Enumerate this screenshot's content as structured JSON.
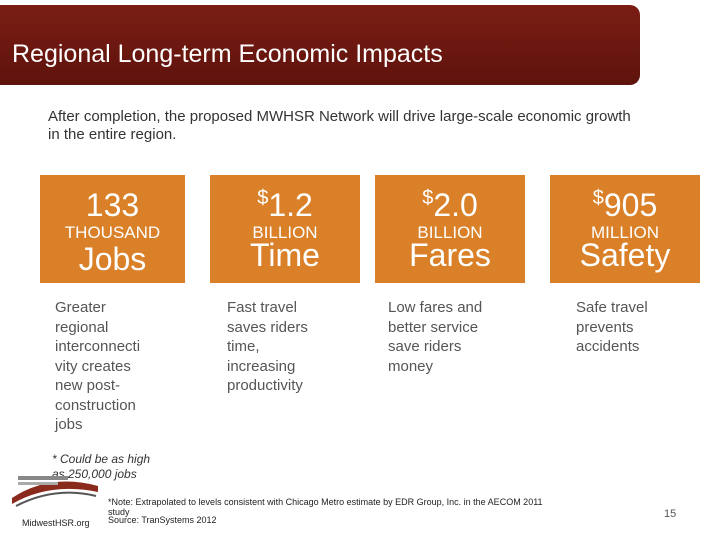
{
  "header": {
    "title": "Regional Long-term Economic Impacts"
  },
  "intro": "After completion, the proposed MWHSR Network will drive large-scale economic growth in the entire region.",
  "impacts": [
    {
      "prefix": "",
      "amount": "133",
      "unit": "THOUSAND",
      "label": "Jobs",
      "description": "Greater regional interconnectivity creates new post-construction jobs"
    },
    {
      "prefix": "$",
      "amount": "1.2",
      "unit": "BILLION",
      "label": "Time",
      "description": "Fast travel saves riders time, increasing productivity"
    },
    {
      "prefix": "$",
      "amount": "2.0",
      "unit": "BILLION",
      "label": "Fares",
      "description": "Low fares and better service save riders money"
    },
    {
      "prefix": "$",
      "amount": "905",
      "unit": "MILLION",
      "label": "Safety",
      "description": "Safe travel prevents accidents"
    }
  ],
  "footnote": "* Could be as high as 250,000 jobs",
  "note": "*Note: Extrapolated to levels consistent with Chicago Metro estimate by EDR Group, Inc. in the AECOM 2011 study",
  "source": "Source: TranSystems 2012",
  "logo_text": "MidwestHSR.org",
  "page_number": "15"
}
